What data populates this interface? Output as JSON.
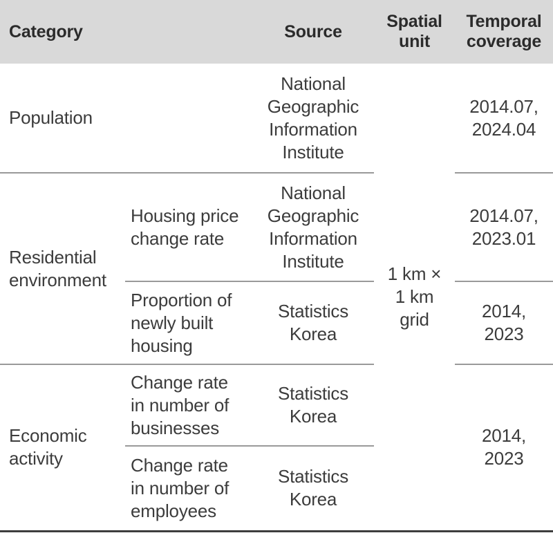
{
  "colors": {
    "header_bg": "#d9d9d9",
    "header_text": "#2b2b2b",
    "body_text": "#3c3c3c",
    "row_divider": "#999999",
    "bottom_border": "#3d3d3d"
  },
  "table": {
    "headers": {
      "category": "Category",
      "source": "Source",
      "spatial_unit": "Spatial\nunit",
      "temporal_coverage": "Temporal\ncoverage"
    },
    "spatial_unit_value": "1 km ×\n1 km\ngrid",
    "sections": [
      {
        "category": "Population",
        "rows": [
          {
            "indicator": "",
            "source": "National\nGeographic\nInformation\nInstitute",
            "temporal": "2014.07,\n2024.04"
          }
        ]
      },
      {
        "category": "Residential\nenvironment",
        "rows": [
          {
            "indicator": "Housing price\nchange rate",
            "source": "National\nGeographic\nInformation\nInstitute",
            "temporal": "2014.07,\n2023.01"
          },
          {
            "indicator": "Proportion of\nnewly built\nhousing",
            "source": "Statistics\nKorea",
            "temporal": "2014,\n2023"
          }
        ]
      },
      {
        "category": "Economic\nactivity",
        "rows": [
          {
            "indicator": "Change rate\nin number of\nbusinesses",
            "source": "Statistics\nKorea",
            "temporal": "2014,\n2023"
          },
          {
            "indicator": "Change rate\nin number of\nemployees",
            "source": "Statistics\nKorea",
            "temporal": ""
          }
        ]
      }
    ]
  }
}
